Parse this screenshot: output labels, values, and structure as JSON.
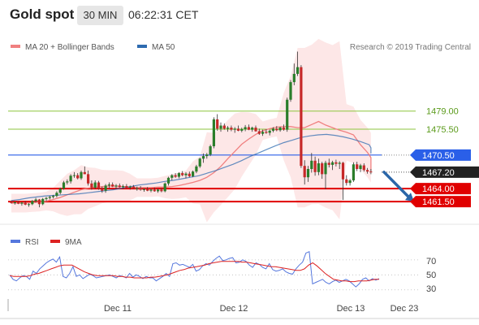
{
  "header": {
    "title": "Gold spot",
    "timeframe": "30 MIN",
    "time": "06:22:31 CET"
  },
  "colors": {
    "ma20": "#f08080",
    "ma50": "#2e6bb0",
    "bollinger_fill": "#fde3e3",
    "candle_up": "#2a7d2a",
    "candle_down": "#c62828",
    "support": "#e00000",
    "resistance": "#2a5fe8",
    "target_line": "#8dc63f",
    "arrow": "#2a66a8",
    "rsi": "#5577dd",
    "rsi_ma": "#dd2222"
  },
  "chart_data": [
    {
      "type": "line",
      "title": "",
      "legend": [
        "MA 20 + Bollinger Bands",
        "MA 50"
      ],
      "source": "Research © 2019 Trading Central",
      "x_ticks": [
        "Dec 11",
        "Dec 12",
        "Dec 13",
        "Dec 23"
      ],
      "ylim": [
        1459,
        1492
      ],
      "levels": [
        {
          "value": 1479.0,
          "label": "1479.00",
          "kind": "target"
        },
        {
          "value": 1475.5,
          "label": "1475.50",
          "kind": "target"
        },
        {
          "value": 1470.5,
          "label": "1470.50",
          "kind": "resistance"
        },
        {
          "value": 1467.2,
          "label": "1467.20",
          "kind": "last_price"
        },
        {
          "value": 1464.0,
          "label": "1464.00",
          "kind": "support"
        },
        {
          "value": 1461.5,
          "label": "1461.50",
          "kind": "support"
        }
      ],
      "projection": {
        "from": 1467.2,
        "to": 1461.5
      },
      "candles": [
        [
          1461.5,
          1461.7,
          1461.1,
          1461.2
        ],
        [
          1461.2,
          1461.5,
          1460.9,
          1461.4
        ],
        [
          1461.4,
          1461.6,
          1461.0,
          1461.1
        ],
        [
          1461.1,
          1461.4,
          1460.7,
          1461.3
        ],
        [
          1461.3,
          1461.6,
          1460.8,
          1460.9
        ],
        [
          1460.9,
          1461.2,
          1460.5,
          1461.0
        ],
        [
          1461.0,
          1461.8,
          1460.8,
          1461.6
        ],
        [
          1461.6,
          1462.2,
          1461.3,
          1461.9
        ],
        [
          1461.9,
          1462.0,
          1460.4,
          1461.0
        ],
        [
          1461.0,
          1462.2,
          1460.8,
          1462.0
        ],
        [
          1462.0,
          1462.4,
          1461.6,
          1462.2
        ],
        [
          1462.2,
          1462.6,
          1461.9,
          1462.4
        ],
        [
          1462.4,
          1462.8,
          1462.1,
          1462.6
        ],
        [
          1462.6,
          1463.5,
          1462.3,
          1463.2
        ],
        [
          1463.2,
          1464.2,
          1462.9,
          1464.0
        ],
        [
          1464.0,
          1465.5,
          1463.8,
          1465.2
        ],
        [
          1465.2,
          1465.8,
          1464.8,
          1465.4
        ],
        [
          1465.4,
          1466.8,
          1465.0,
          1466.5
        ],
        [
          1466.5,
          1467.2,
          1466.1,
          1466.6
        ],
        [
          1466.6,
          1467.0,
          1465.8,
          1466.0
        ],
        [
          1466.0,
          1467.5,
          1465.7,
          1467.2
        ],
        [
          1467.2,
          1468.3,
          1466.8,
          1466.8
        ],
        [
          1466.8,
          1467.5,
          1464.6,
          1465.0
        ],
        [
          1465.0,
          1465.6,
          1463.8,
          1464.2
        ],
        [
          1464.2,
          1465.6,
          1463.9,
          1465.2
        ],
        [
          1465.2,
          1465.5,
          1463.8,
          1464.0
        ],
        [
          1464.0,
          1464.4,
          1463.2,
          1463.6
        ],
        [
          1463.6,
          1464.9,
          1463.2,
          1464.6
        ],
        [
          1464.6,
          1465.2,
          1464.1,
          1464.8
        ],
        [
          1464.8,
          1465.2,
          1464.3,
          1464.4
        ],
        [
          1464.4,
          1464.9,
          1463.9,
          1464.6
        ],
        [
          1464.6,
          1465.0,
          1464.2,
          1464.3
        ],
        [
          1464.3,
          1464.8,
          1463.9,
          1464.5
        ],
        [
          1464.5,
          1464.9,
          1464.1,
          1464.2
        ],
        [
          1464.2,
          1464.6,
          1463.8,
          1464.4
        ],
        [
          1464.4,
          1464.7,
          1463.9,
          1464.0
        ],
        [
          1464.0,
          1464.4,
          1463.6,
          1464.1
        ],
        [
          1464.1,
          1464.5,
          1463.6,
          1463.8
        ],
        [
          1463.8,
          1464.1,
          1463.4,
          1463.9
        ],
        [
          1463.9,
          1464.3,
          1463.5,
          1463.6
        ],
        [
          1463.6,
          1464.0,
          1463.3,
          1463.8
        ],
        [
          1463.8,
          1464.2,
          1463.4,
          1463.5
        ],
        [
          1463.5,
          1464.0,
          1463.2,
          1463.8
        ],
        [
          1463.8,
          1464.1,
          1463.3,
          1463.5
        ],
        [
          1463.5,
          1465.2,
          1463.3,
          1465.0
        ],
        [
          1465.0,
          1466.3,
          1464.6,
          1466.1
        ],
        [
          1466.1,
          1466.8,
          1465.6,
          1466.6
        ],
        [
          1466.6,
          1467.0,
          1466.1,
          1466.3
        ],
        [
          1466.3,
          1467.2,
          1466.0,
          1467.0
        ],
        [
          1467.0,
          1467.4,
          1466.4,
          1466.6
        ],
        [
          1466.6,
          1467.2,
          1466.0,
          1466.9
        ],
        [
          1466.9,
          1467.3,
          1466.2,
          1466.4
        ],
        [
          1466.4,
          1467.5,
          1466.2,
          1467.3
        ],
        [
          1467.3,
          1468.6,
          1467.0,
          1468.3
        ],
        [
          1468.3,
          1470.0,
          1468.0,
          1469.8
        ],
        [
          1469.8,
          1470.8,
          1469.0,
          1470.3
        ],
        [
          1470.3,
          1470.9,
          1469.8,
          1470.6
        ],
        [
          1470.6,
          1472.5,
          1470.3,
          1472.2
        ],
        [
          1472.2,
          1477.8,
          1471.8,
          1477.4
        ],
        [
          1477.4,
          1478.4,
          1475.2,
          1475.6
        ],
        [
          1475.6,
          1476.8,
          1475.0,
          1476.2
        ],
        [
          1476.2,
          1476.6,
          1475.4,
          1475.6
        ],
        [
          1475.6,
          1476.1,
          1475.0,
          1475.8
        ],
        [
          1475.8,
          1476.2,
          1475.1,
          1475.4
        ],
        [
          1475.4,
          1475.9,
          1474.8,
          1475.6
        ],
        [
          1475.6,
          1476.2,
          1475.1,
          1475.2
        ],
        [
          1475.2,
          1475.8,
          1474.9,
          1475.5
        ],
        [
          1475.5,
          1476.3,
          1475.1,
          1475.9
        ],
        [
          1475.9,
          1476.4,
          1475.3,
          1475.4
        ],
        [
          1475.4,
          1476.0,
          1475.0,
          1475.8
        ],
        [
          1475.8,
          1476.2,
          1475.0,
          1475.1
        ],
        [
          1475.1,
          1475.6,
          1474.4,
          1474.6
        ],
        [
          1474.6,
          1475.4,
          1474.2,
          1475.0
        ],
        [
          1475.0,
          1475.5,
          1474.6,
          1474.8
        ],
        [
          1474.8,
          1475.4,
          1474.3,
          1475.2
        ],
        [
          1475.2,
          1475.9,
          1474.9,
          1475.6
        ],
        [
          1475.6,
          1476.1,
          1475.1,
          1475.3
        ],
        [
          1475.3,
          1476.0,
          1475.0,
          1475.8
        ],
        [
          1475.8,
          1476.4,
          1475.2,
          1475.4
        ],
        [
          1475.4,
          1481.6,
          1475.0,
          1481.2
        ],
        [
          1481.2,
          1485.0,
          1480.8,
          1484.6
        ],
        [
          1484.6,
          1488.2,
          1484.0,
          1486.2
        ],
        [
          1486.2,
          1490.5,
          1485.8,
          1487.5
        ],
        [
          1487.5,
          1487.9,
          1468.0,
          1468.4
        ],
        [
          1468.4,
          1469.5,
          1464.8,
          1466.2
        ],
        [
          1466.2,
          1468.4,
          1465.3,
          1467.8
        ],
        [
          1467.8,
          1470.9,
          1467.1,
          1469.4
        ],
        [
          1469.4,
          1470.2,
          1466.5,
          1467.2
        ],
        [
          1467.2,
          1469.8,
          1466.6,
          1468.9
        ],
        [
          1468.9,
          1469.2,
          1465.9,
          1466.8
        ],
        [
          1466.8,
          1469.4,
          1463.9,
          1469.0
        ],
        [
          1469.0,
          1469.8,
          1468.1,
          1468.6
        ],
        [
          1468.6,
          1469.4,
          1467.6,
          1469.1
        ],
        [
          1469.1,
          1469.6,
          1468.3,
          1468.8
        ],
        [
          1468.8,
          1469.3,
          1467.8,
          1469.0
        ],
        [
          1469.0,
          1469.2,
          1461.8,
          1465.8
        ],
        [
          1465.8,
          1466.6,
          1464.6,
          1465.1
        ],
        [
          1465.1,
          1465.9,
          1464.6,
          1465.6
        ],
        [
          1465.6,
          1469.1,
          1465.3,
          1468.7
        ],
        [
          1468.7,
          1469.2,
          1467.4,
          1467.8
        ],
        [
          1467.8,
          1468.8,
          1467.2,
          1468.5
        ],
        [
          1468.5,
          1468.9,
          1467.3,
          1467.6
        ],
        [
          1467.6,
          1468.0,
          1466.9,
          1467.3
        ],
        [
          1467.3,
          1467.8,
          1466.8,
          1467.2
        ]
      ],
      "ma20": [
        1461.2,
        1461.2,
        1461.2,
        1461.3,
        1461.4,
        1461.6,
        1461.9,
        1462.3,
        1462.8,
        1463.3,
        1463.8,
        1464.1,
        1464.3,
        1464.4,
        1464.5,
        1464.5,
        1464.4,
        1464.3,
        1464.2,
        1464.2,
        1464.2,
        1464.3,
        1464.3,
        1464.4,
        1464.6,
        1464.9,
        1465.2,
        1465.6,
        1466.2,
        1467.1,
        1468.3,
        1469.8,
        1471.2,
        1472.6,
        1473.6,
        1474.5,
        1475.2,
        1475.6,
        1475.9,
        1476.0,
        1476.0,
        1475.8,
        1475.8,
        1476.4,
        1477.0,
        1476.3,
        1475.8,
        1475.3,
        1474.9,
        1474.4,
        1472.5,
        1471.0,
        1470.0,
        1469.0,
        1468.1,
        1467.5,
        1467.2
      ],
      "ma50": [
        1461.7,
        1461.9,
        1462.2,
        1462.4,
        1462.6,
        1462.7,
        1462.8,
        1462.9,
        1463.0,
        1463.2,
        1463.4,
        1463.6,
        1463.8,
        1464.1,
        1464.4,
        1464.7,
        1464.9,
        1465.1,
        1465.4,
        1465.6,
        1465.9,
        1466.2,
        1466.5,
        1467.0,
        1467.5,
        1468.1,
        1468.7,
        1469.4,
        1470.2,
        1470.9,
        1471.6,
        1472.3,
        1472.9,
        1473.4,
        1473.9,
        1474.2,
        1474.4,
        1474.5,
        1474.3,
        1474.0,
        1473.6,
        1473.1,
        1472.5,
        1471.9,
        1471.3,
        1470.8
      ]
    },
    {
      "type": "line",
      "legend": [
        "RSI",
        "9MA"
      ],
      "y_ticks": [
        "70",
        "50",
        "30"
      ],
      "ylim": [
        20,
        85
      ],
      "rsi": [
        50,
        44,
        42,
        46,
        49,
        48,
        44,
        55,
        52,
        58,
        62,
        66,
        69,
        71,
        67,
        74,
        48,
        46,
        52,
        61,
        48,
        50,
        45,
        48,
        51,
        49,
        46,
        47,
        48,
        49,
        50,
        48,
        46,
        49,
        48,
        46,
        52,
        47,
        50,
        48,
        45,
        48,
        46,
        46,
        42,
        45,
        48,
        52,
        48,
        65,
        66,
        63,
        64,
        62,
        60,
        64,
        55,
        57,
        62,
        65,
        63,
        68,
        72,
        75,
        69,
        70,
        72,
        73,
        66,
        67,
        70,
        68,
        63,
        60,
        66,
        64,
        60,
        58,
        65,
        57,
        55,
        56,
        58,
        54,
        52,
        51,
        58,
        63,
        67,
        79,
        81,
        38,
        40,
        42,
        44,
        40,
        38,
        41,
        43,
        40,
        42,
        44,
        42,
        38,
        34,
        38,
        44,
        46,
        42,
        45,
        43,
        45
      ],
      "rsi_ma": [
        49,
        48,
        48,
        48,
        48,
        49,
        51,
        52,
        54,
        56,
        58,
        60,
        62,
        63,
        63,
        63,
        60,
        57,
        54,
        52,
        50,
        49,
        49,
        49,
        49,
        49,
        48,
        48,
        47,
        47,
        46,
        46,
        46,
        46,
        47,
        47,
        48,
        49,
        50,
        52,
        54,
        56,
        57,
        59,
        60,
        61,
        62,
        63,
        65,
        66,
        67,
        68,
        68,
        68,
        68,
        68,
        67,
        67,
        66,
        65,
        64,
        63,
        62,
        61,
        61,
        60,
        59,
        58,
        57,
        56,
        56,
        58,
        63,
        66,
        62,
        57,
        52,
        48,
        44,
        43,
        42,
        42,
        41,
        41,
        42,
        42,
        42,
        43,
        44,
        44
      ]
    }
  ]
}
